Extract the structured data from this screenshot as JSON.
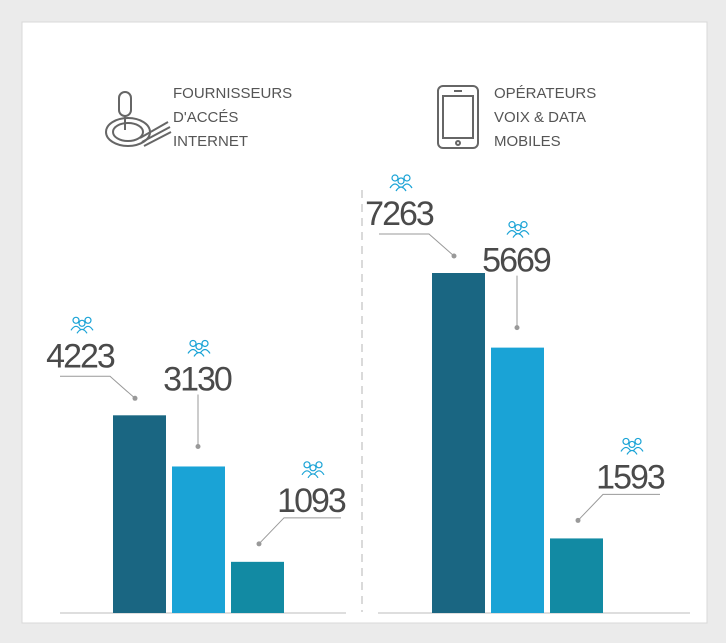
{
  "chart_data": {
    "type": "bar",
    "groups": [
      {
        "title_lines": [
          "FOURNISSEURS",
          "D'ACCÉS",
          "INTERNET"
        ],
        "values": [
          4223,
          3130,
          1093
        ]
      },
      {
        "title_lines": [
          "OPÉRATEURS",
          "VOIX & DATA",
          "MOBILES"
        ],
        "values": [
          7263,
          5669,
          1593
        ]
      }
    ],
    "colors": [
      "#1a6682",
      "#1aa3d6",
      "#128aa3"
    ]
  }
}
